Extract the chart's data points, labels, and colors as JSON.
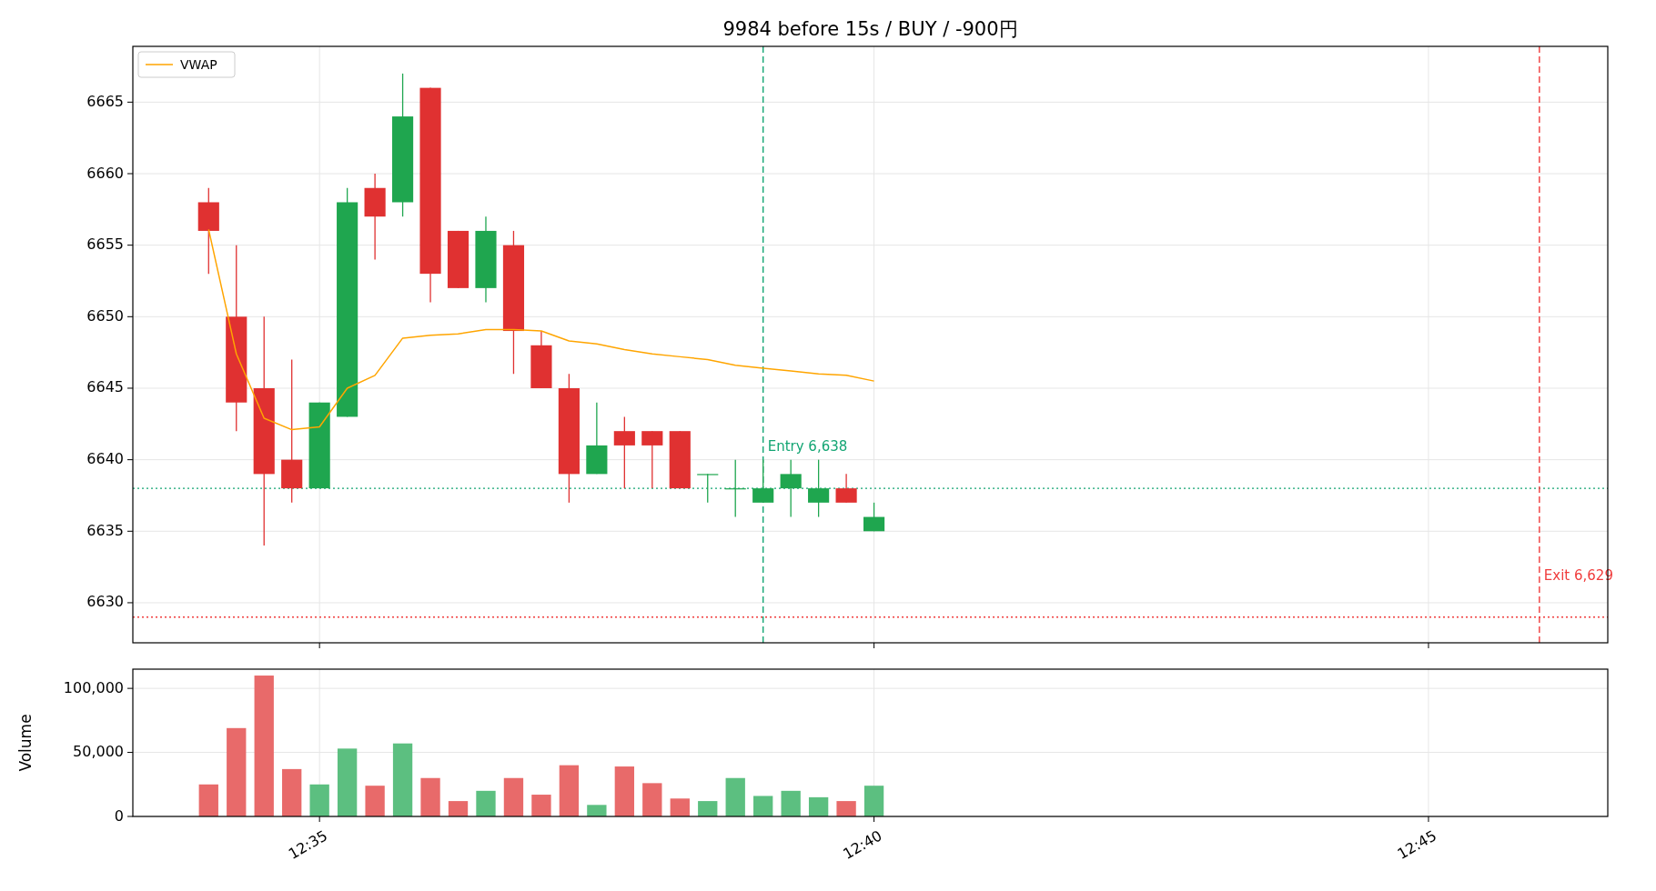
{
  "chart_data": [
    {
      "type": "candlestick",
      "title": "9984 before 15s / BUY / -900円",
      "x": [
        12.566667,
        12.570833,
        12.575,
        12.579167,
        12.583333,
        12.5875,
        12.591667,
        12.595833,
        12.6,
        12.604167,
        12.608333,
        12.6125,
        12.616667,
        12.620833,
        12.625,
        12.629167,
        12.633333,
        12.6375,
        12.641667,
        12.645833,
        12.65,
        12.654167,
        12.658333,
        12.6625,
        12.666667
      ],
      "ohlc": [
        [
          6658,
          6659,
          6653,
          6656
        ],
        [
          6650,
          6655,
          6642,
          6644
        ],
        [
          6645,
          6650,
          6634,
          6639
        ],
        [
          6640,
          6647,
          6637,
          6638
        ],
        [
          6638,
          6644,
          6638,
          6644
        ],
        [
          6643,
          6659,
          6643,
          6658
        ],
        [
          6659,
          6660,
          6654,
          6657
        ],
        [
          6658,
          6667,
          6657,
          6664
        ],
        [
          6666,
          6666,
          6651,
          6653
        ],
        [
          6656,
          6656,
          6652,
          6652
        ],
        [
          6652,
          6657,
          6651,
          6656
        ],
        [
          6655,
          6656,
          6646,
          6649
        ],
        [
          6648,
          6649,
          6645,
          6645
        ],
        [
          6645,
          6646,
          6637,
          6639
        ],
        [
          6639,
          6644,
          6639,
          6641
        ],
        [
          6642,
          6643,
          6638,
          6641
        ],
        [
          6642,
          6642,
          6638,
          6641
        ],
        [
          6642,
          6642,
          6638,
          6638
        ],
        [
          6639,
          6639,
          6637,
          6639
        ],
        [
          6638,
          6640,
          6636,
          6638
        ],
        [
          6637,
          6640,
          6637,
          6638
        ],
        [
          6638,
          6640,
          6636,
          6639
        ],
        [
          6637,
          6640,
          6636,
          6638
        ],
        [
          6638,
          6639,
          6637,
          6637
        ],
        [
          6635,
          6637,
          6635,
          6636
        ]
      ],
      "colors": [
        "#e03131",
        "#e03131",
        "#e03131",
        "#e03131",
        "#1fa64f",
        "#1fa64f",
        "#e03131",
        "#1fa64f",
        "#e03131",
        "#e03131",
        "#1fa64f",
        "#e03131",
        "#e03131",
        "#e03131",
        "#1fa64f",
        "#e03131",
        "#e03131",
        "#e03131",
        "#1fa64f",
        "#1fa64f",
        "#1fa64f",
        "#1fa64f",
        "#1fa64f",
        "#e03131",
        "#1fa64f"
      ],
      "series": [
        {
          "name": "VWAP",
          "type": "line",
          "color": "#ffa500",
          "values": [
            6656.1,
            6647.4,
            6642.9,
            6642.1,
            6642.3,
            6645,
            6645.9,
            6648.5,
            6648.7,
            6648.8,
            6649.1,
            6649.1,
            6649,
            6648.3,
            6648.1,
            6647.7,
            6647.4,
            6647.2,
            6647,
            6646.6,
            6646.4,
            6646.2,
            6646,
            6645.9,
            6645.5
          ]
        }
      ],
      "xlim": [
        12.555278,
        12.776944
      ],
      "xticks": [
        {
          "value": 12.583333,
          "label": null
        },
        {
          "value": 12.666667,
          "label": null
        },
        {
          "value": 12.75,
          "label": null
        }
      ],
      "ylim": [
        6627.2,
        6668.9
      ],
      "yticks": [
        6630,
        6635,
        6640,
        6645,
        6650,
        6655,
        6660,
        6665
      ],
      "ref_lines": [
        {
          "axis": "x",
          "value": 12.65,
          "color": "#13a573",
          "line_style": "dashed"
        },
        {
          "axis": "y",
          "value": 6638,
          "label": "Entry 6,638",
          "color": "#13a573",
          "line_style": "dotted"
        },
        {
          "axis": "x",
          "value": 12.766667,
          "color": "#f03c3c",
          "line_style": "dashed"
        },
        {
          "axis": "y",
          "value": 6629,
          "label": "Exit 6,629",
          "color": "#f03c3c",
          "line_style": "dotted"
        }
      ],
      "grid": true,
      "legend": "top left",
      "tick_labels": "y"
    },
    {
      "type": "bar",
      "ylabel": "Volume",
      "x": [
        12.566667,
        12.570833,
        12.575,
        12.579167,
        12.583333,
        12.5875,
        12.591667,
        12.595833,
        12.6,
        12.604167,
        12.608333,
        12.6125,
        12.616667,
        12.620833,
        12.625,
        12.629167,
        12.633333,
        12.6375,
        12.641667,
        12.645833,
        12.65,
        12.654167,
        12.658333,
        12.6625,
        12.666667
      ],
      "values": [
        25000,
        69000,
        110000,
        37000,
        25000,
        53000,
        24000,
        57000,
        30000,
        12000,
        20000,
        30000,
        17000,
        40000,
        9000,
        39000,
        26000,
        14000,
        12000,
        30000,
        16000,
        20000,
        15000,
        12000,
        24000
      ],
      "colors": [
        "#e86a6a",
        "#e86a6a",
        "#e86a6a",
        "#e86a6a",
        "#5cbf80",
        "#5cbf80",
        "#e86a6a",
        "#5cbf80",
        "#e86a6a",
        "#e86a6a",
        "#5cbf80",
        "#e86a6a",
        "#e86a6a",
        "#e86a6a",
        "#5cbf80",
        "#e86a6a",
        "#e86a6a",
        "#e86a6a",
        "#5cbf80",
        "#5cbf80",
        "#5cbf80",
        "#5cbf80",
        "#5cbf80",
        "#e86a6a",
        "#5cbf80"
      ],
      "xlim": [
        12.555278,
        12.776944
      ],
      "xticks": [
        {
          "value": 12.583333,
          "label": "12:35"
        },
        {
          "value": 12.666667,
          "label": "12:40"
        },
        {
          "value": 12.75,
          "label": "12:45"
        }
      ],
      "ylim": [
        0,
        115000
      ],
      "yticks": [
        0,
        {
          "value": 50000,
          "label": "50,000"
        },
        {
          "value": 100000,
          "label": "100,000"
        }
      ],
      "grid": true
    }
  ]
}
